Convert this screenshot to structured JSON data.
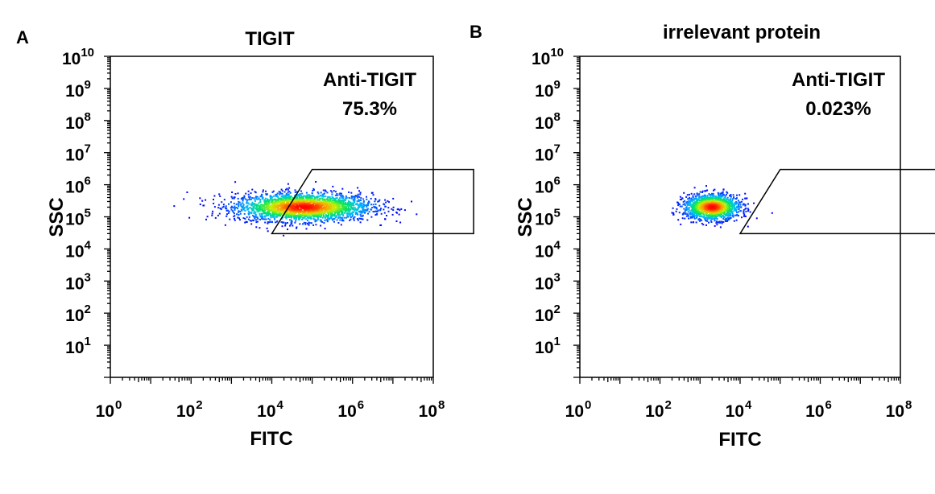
{
  "chart_data": [
    {
      "type": "scatter",
      "panel_label": "A",
      "title": "TIGIT",
      "xlabel": "FITC",
      "ylabel": "SSC",
      "x_scale": "log",
      "y_scale": "log",
      "xlim": [
        1,
        100000000
      ],
      "ylim": [
        1,
        10000000000
      ],
      "x_ticks": [
        {
          "value": 1,
          "base": "10",
          "exp": "0"
        },
        {
          "value": 100,
          "base": "10",
          "exp": "2"
        },
        {
          "value": 10000,
          "base": "10",
          "exp": "4"
        },
        {
          "value": 1000000,
          "base": "10",
          "exp": "6"
        },
        {
          "value": 100000000,
          "base": "10",
          "exp": "8"
        }
      ],
      "y_ticks": [
        {
          "value": 10,
          "base": "10",
          "exp": "1"
        },
        {
          "value": 100,
          "base": "10",
          "exp": "2"
        },
        {
          "value": 1000,
          "base": "10",
          "exp": "3"
        },
        {
          "value": 10000,
          "base": "10",
          "exp": "4"
        },
        {
          "value": 100000,
          "base": "10",
          "exp": "5"
        },
        {
          "value": 1000000,
          "base": "10",
          "exp": "6"
        },
        {
          "value": 10000000,
          "base": "10",
          "exp": "7"
        },
        {
          "value": 100000000,
          "base": "10",
          "exp": "8"
        },
        {
          "value": 1000000000,
          "base": "10",
          "exp": "9"
        },
        {
          "value": 10000000000,
          "base": "10",
          "exp": "10"
        }
      ],
      "gate": {
        "name": "Anti-TIGIT",
        "percent": "75.3%",
        "polygon": [
          [
            100000,
            3000000
          ],
          [
            1000000000,
            3000000
          ],
          [
            1000000000,
            30000
          ],
          [
            10000,
            30000
          ]
        ]
      },
      "population": {
        "center_x": 60000,
        "center_y": 200000,
        "spread_x_decades": 0.85,
        "spread_y_decades": 0.22,
        "n_points": 2600
      }
    },
    {
      "type": "scatter",
      "panel_label": "B",
      "title": "irrelevant protein",
      "xlabel": "FITC",
      "ylabel": "SSC",
      "x_scale": "log",
      "y_scale": "log",
      "xlim": [
        1,
        100000000
      ],
      "ylim": [
        1,
        10000000000
      ],
      "x_ticks": [
        {
          "value": 1,
          "base": "10",
          "exp": "0"
        },
        {
          "value": 100,
          "base": "10",
          "exp": "2"
        },
        {
          "value": 10000,
          "base": "10",
          "exp": "4"
        },
        {
          "value": 1000000,
          "base": "10",
          "exp": "6"
        },
        {
          "value": 100000000,
          "base": "10",
          "exp": "8"
        }
      ],
      "y_ticks": [
        {
          "value": 10,
          "base": "10",
          "exp": "1"
        },
        {
          "value": 100,
          "base": "10",
          "exp": "2"
        },
        {
          "value": 1000,
          "base": "10",
          "exp": "3"
        },
        {
          "value": 10000,
          "base": "10",
          "exp": "4"
        },
        {
          "value": 100000,
          "base": "10",
          "exp": "5"
        },
        {
          "value": 1000000,
          "base": "10",
          "exp": "6"
        },
        {
          "value": 10000000,
          "base": "10",
          "exp": "7"
        },
        {
          "value": 100000000,
          "base": "10",
          "exp": "8"
        },
        {
          "value": 1000000000,
          "base": "10",
          "exp": "9"
        },
        {
          "value": 10000000000,
          "base": "10",
          "exp": "10"
        }
      ],
      "gate": {
        "name": "Anti-TIGIT",
        "percent": "0.023%",
        "polygon": [
          [
            100000,
            3000000
          ],
          [
            1000000000,
            3000000
          ],
          [
            1000000000,
            30000
          ],
          [
            10000,
            30000
          ]
        ]
      },
      "population": {
        "center_x": 2000,
        "center_y": 200000,
        "spread_x_decades": 0.35,
        "spread_y_decades": 0.2,
        "n_points": 1500
      }
    }
  ],
  "colors": {
    "axis": "#000000",
    "gate": "#000000",
    "density_low": "#0000ff",
    "density_mid": "#00ff00",
    "density_high": "#ff0000"
  }
}
